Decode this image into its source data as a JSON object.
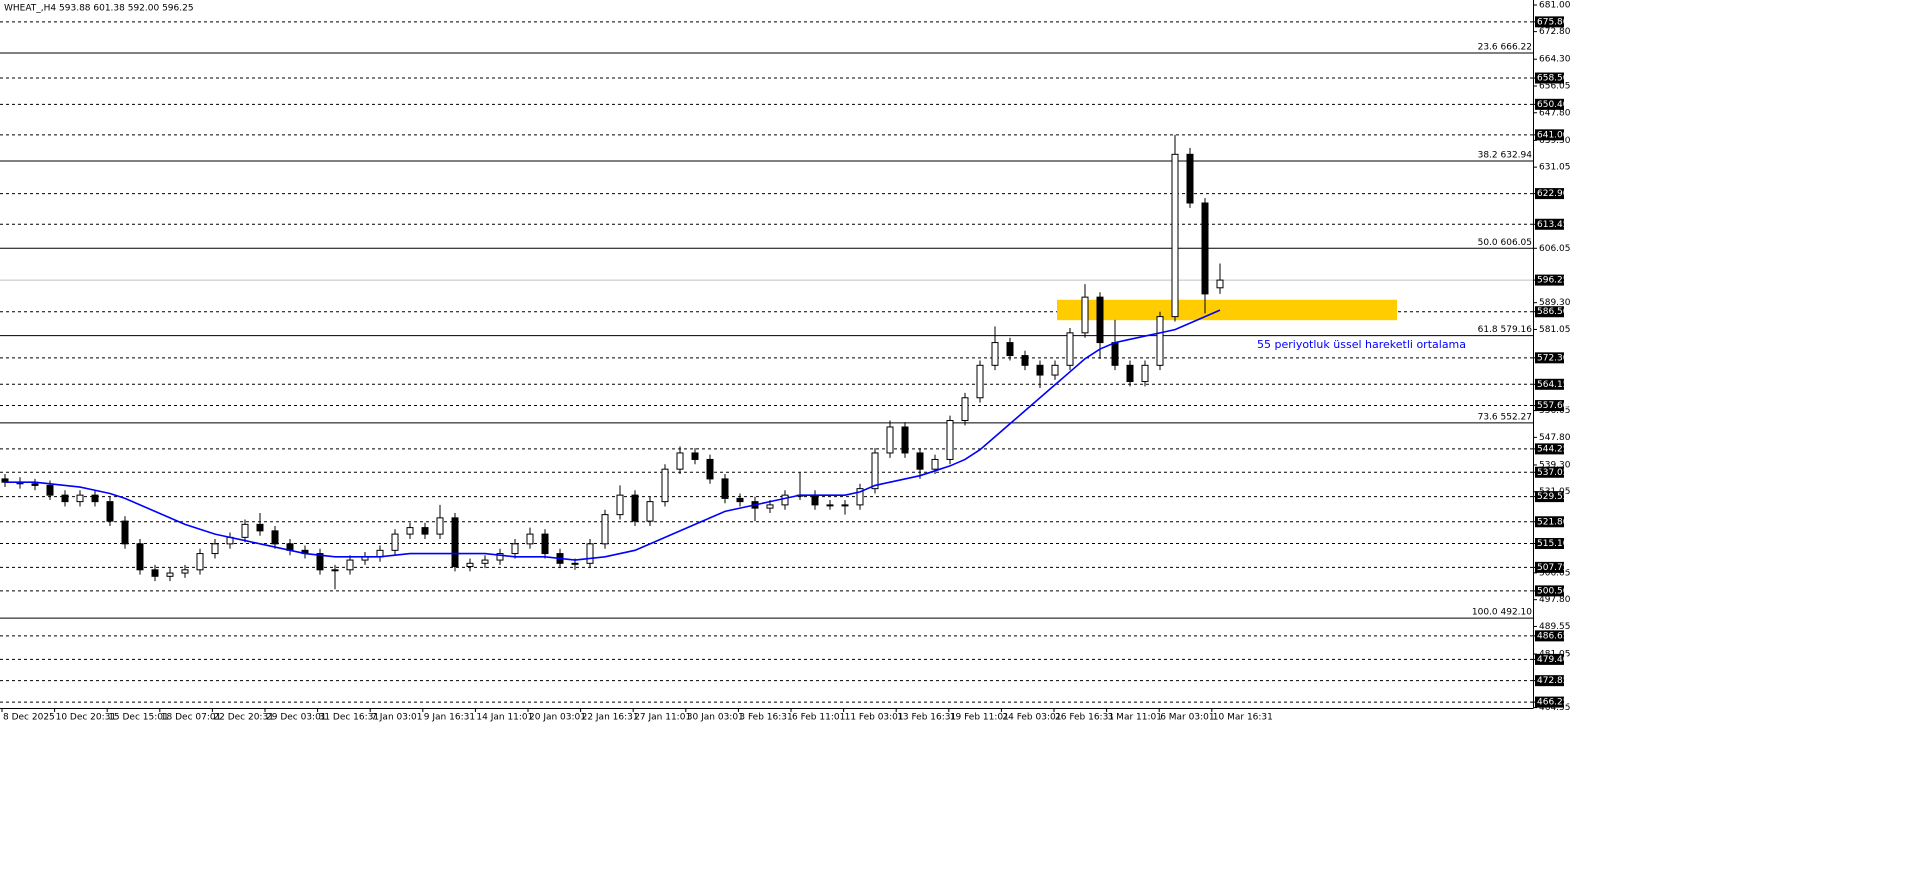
{
  "chart_data": {
    "type": "candlestick",
    "title": "WHEAT_,H4  593.88 601.38 592.00 596.25",
    "ylim": [
      464.55,
      682.54
    ],
    "up_color": "#ffffff",
    "down_color": "#000000",
    "wick_color": "#000000",
    "yticks": [
      {
        "value": 681,
        "label": "681.00"
      },
      {
        "value": 672.8,
        "label": "672.80"
      },
      {
        "value": 664.3,
        "label": "664.30"
      },
      656.05,
      {
        "value": 647.8,
        "label": "647.80"
      },
      {
        "value": 639.3,
        "label": "639.30"
      },
      631.05,
      606.05,
      {
        "value": 589.3,
        "label": "589.30"
      },
      581.05,
      556.05,
      {
        "value": 547.8,
        "label": "547.80"
      },
      {
        "value": 539.3,
        "label": "539.30"
      },
      531.05,
      506.05,
      {
        "value": 497.8,
        "label": "497.80"
      },
      489.55,
      481.05,
      464.55
    ],
    "levels": [
      {
        "value": 675.8,
        "label": "675.80"
      },
      {
        "value": 658.5,
        "label": "658.50"
      },
      {
        "value": 650.4,
        "label": "650.40"
      },
      {
        "value": 641,
        "label": "641.00"
      },
      {
        "value": 622.9,
        "label": "622.90"
      },
      613.45,
      {
        "value": 586.5,
        "label": "586.50"
      },
      {
        "value": 572.3,
        "label": "572.30"
      },
      564.15,
      {
        "value": 557.6,
        "label": "557.60"
      },
      544.25,
      537.05,
      529.55,
      {
        "value": 521.8,
        "label": "521.80"
      },
      {
        "value": 515.1,
        "label": "515.10"
      },
      507.75,
      {
        "value": 500.5,
        "label": "500.50"
      },
      486.65,
      {
        "value": 479.4,
        "label": "479.40"
      },
      472.85,
      466.25
    ],
    "last_price": 596.25,
    "fib_levels": [
      {
        "value": 666.22,
        "label": "23.6 666.22"
      },
      {
        "value": 632.94,
        "label": "38.2 632.94"
      },
      {
        "value": 606.05,
        "label": "50.0 606.05"
      },
      {
        "value": 579.16,
        "label": "61.8 579.16"
      },
      {
        "value": 552.27,
        "label": "73.6 552.27"
      },
      {
        "value": 492.1,
        "label": "100.0 492.10"
      }
    ],
    "zone": {
      "ylim": [
        583.9,
        590.2
      ],
      "color": "#ffcc00"
    },
    "x_labels": [
      "8 Dec 2025",
      "10 Dec 20:31",
      "15 Dec 15:01",
      "18 Dec 07:01",
      "22 Dec 20:31",
      "29 Dec 03:01",
      "31 Dec 16:31",
      "7 Jan 03:01",
      "9 Jan 16:31",
      "14 Jan 11:01",
      "20 Jan 03:01",
      "22 Jan 16:31",
      "27 Jan 11:01",
      "30 Jan 03:01",
      "3 Feb 16:31",
      "6 Feb 11:01",
      "11 Feb 03:01",
      "13 Feb 16:31",
      "19 Feb 11:01",
      "24 Feb 03:01",
      "26 Feb 16:31",
      "3 Mar 11:01",
      "6 Mar 03:01",
      "10 Mar 16:31"
    ],
    "candles": [
      [
        535,
        536.5,
        532.5,
        534
      ],
      [
        534,
        535.5,
        532,
        533.5
      ],
      [
        533.5,
        535,
        531.5,
        533
      ],
      [
        533,
        534.5,
        528.5,
        530
      ],
      [
        530,
        531.5,
        526.5,
        528
      ],
      [
        528,
        531.5,
        526.5,
        530
      ],
      [
        530,
        531.5,
        526.5,
        528
      ],
      [
        528,
        529.5,
        520.5,
        522
      ],
      [
        522,
        523.5,
        513.5,
        515
      ],
      [
        515,
        516.5,
        505.5,
        507
      ],
      [
        507,
        508.5,
        503.5,
        505
      ],
      [
        505,
        507.5,
        503.5,
        506
      ],
      [
        506,
        508.5,
        504.5,
        507
      ],
      [
        507,
        513.5,
        505.5,
        512
      ],
      [
        512,
        516.5,
        510.5,
        515
      ],
      [
        515,
        518.5,
        513.5,
        517
      ],
      [
        517,
        522.5,
        515.5,
        521
      ],
      [
        521,
        524.5,
        517.5,
        519
      ],
      [
        519,
        520.5,
        513.5,
        515
      ],
      [
        515,
        516.5,
        511.5,
        513
      ],
      [
        513,
        514.5,
        510.5,
        512
      ],
      [
        512,
        513.5,
        505.5,
        507
      ],
      [
        507,
        508.5,
        501,
        507
      ],
      [
        507,
        511.5,
        505.5,
        510
      ],
      [
        510,
        512.5,
        508.5,
        511
      ],
      [
        511,
        514.5,
        509.5,
        513
      ],
      [
        513,
        519.5,
        511.5,
        518
      ],
      [
        518,
        521.5,
        516.5,
        520
      ],
      [
        520,
        521.5,
        516.5,
        518
      ],
      [
        518,
        527,
        516.5,
        523
      ],
      [
        523,
        524.5,
        506.5,
        508
      ],
      [
        508,
        510.5,
        506.5,
        509
      ],
      [
        509,
        511.5,
        507.5,
        510
      ],
      [
        510,
        513.5,
        508.5,
        512
      ],
      [
        512,
        516.5,
        510.5,
        515
      ],
      [
        515,
        520,
        513.5,
        518
      ],
      [
        518,
        519.5,
        510.5,
        512
      ],
      [
        512,
        513.5,
        507.5,
        509
      ],
      [
        509,
        510.5,
        507,
        509
      ],
      [
        509,
        516.5,
        507.5,
        515
      ],
      [
        515,
        525.5,
        513.5,
        524
      ],
      [
        524,
        533,
        522.5,
        530
      ],
      [
        530,
        531.5,
        520.5,
        522
      ],
      [
        522,
        529.5,
        520.5,
        528
      ],
      [
        528,
        539.5,
        526.5,
        538
      ],
      [
        538,
        545,
        536.5,
        543
      ],
      [
        543,
        544.5,
        539.5,
        541
      ],
      [
        541,
        542.5,
        533.5,
        535
      ],
      [
        535,
        536.5,
        527.5,
        529
      ],
      [
        529,
        530.5,
        526.5,
        528
      ],
      [
        528,
        529.5,
        522,
        526
      ],
      [
        526,
        528.5,
        524.5,
        527
      ],
      [
        527,
        531.5,
        525.5,
        530
      ],
      [
        530,
        537,
        528.5,
        530
      ],
      [
        530,
        531.5,
        525.5,
        527
      ],
      [
        527,
        528.5,
        525.5,
        527
      ],
      [
        527,
        528.5,
        524,
        527
      ],
      [
        527,
        533.5,
        525.5,
        532
      ],
      [
        532,
        544.5,
        530.5,
        543
      ],
      [
        543,
        553,
        541.5,
        551
      ],
      [
        551,
        552.5,
        541.5,
        543
      ],
      [
        543,
        544.5,
        535,
        538
      ],
      [
        538,
        542.5,
        536.5,
        541
      ],
      [
        541,
        554.5,
        539.5,
        553
      ],
      [
        553,
        561.5,
        551.5,
        560
      ],
      [
        560,
        571.5,
        558.5,
        570
      ],
      [
        570,
        582,
        568.5,
        577
      ],
      [
        577,
        578.5,
        571.5,
        573
      ],
      [
        573,
        574.5,
        568.5,
        570
      ],
      [
        570,
        571.5,
        563,
        567
      ],
      [
        567,
        571.5,
        565.5,
        570
      ],
      [
        570,
        581.5,
        568.5,
        580
      ],
      [
        580,
        595,
        578.5,
        591
      ],
      [
        591,
        592.5,
        572,
        577
      ],
      [
        577,
        584,
        568.5,
        570
      ],
      [
        570,
        571.5,
        563.5,
        565
      ],
      [
        565,
        571.5,
        563.5,
        570
      ],
      [
        570,
        586.5,
        568.5,
        585
      ],
      [
        585,
        641,
        583.5,
        635
      ],
      [
        635,
        637,
        618.5,
        620
      ],
      [
        620,
        621.5,
        586,
        592
      ],
      [
        593.88,
        601.38,
        592,
        596.25
      ]
    ],
    "ema": {
      "name": "55 periyotluk üssel hareketli ortalama",
      "color": "#0000ff",
      "values": [
        534,
        534,
        534,
        533.5,
        533,
        532.5,
        531.5,
        530.5,
        529,
        527,
        525,
        523,
        521,
        519.5,
        518,
        517,
        516,
        515,
        514,
        513,
        512,
        511.5,
        511,
        511,
        511,
        511,
        511.5,
        512,
        512,
        512,
        512,
        512,
        512,
        511.5,
        511,
        511,
        511,
        510.5,
        510,
        510.5,
        511,
        512,
        513,
        515,
        517,
        519,
        521,
        523,
        525,
        526,
        527,
        528,
        529,
        530,
        530,
        530,
        530,
        531,
        533,
        534,
        535,
        536,
        537.5,
        539,
        541,
        544,
        548,
        552,
        556,
        560,
        564,
        568,
        572,
        575,
        577,
        578,
        579,
        580,
        581,
        583,
        585,
        587
      ]
    }
  }
}
